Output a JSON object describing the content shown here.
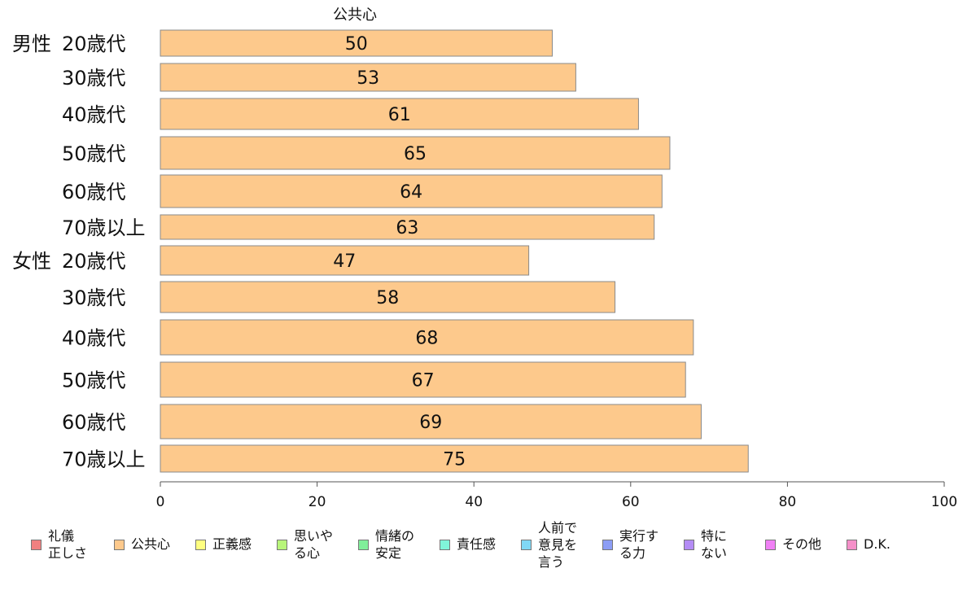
{
  "chart_data": {
    "type": "bar",
    "orientation": "horizontal",
    "title": "公共心",
    "groups": [
      "男性",
      "女性"
    ],
    "categories": [
      {
        "group": "男性",
        "label": "20歳代",
        "value": 50
      },
      {
        "group": "",
        "label": "30歳代",
        "value": 53
      },
      {
        "group": "",
        "label": "40歳代",
        "value": 61
      },
      {
        "group": "",
        "label": "50歳代",
        "value": 65
      },
      {
        "group": "",
        "label": "60歳代",
        "value": 64
      },
      {
        "group": "",
        "label": "70歳以上",
        "value": 63
      },
      {
        "group": "女性",
        "label": "20歳代",
        "value": 47
      },
      {
        "group": "",
        "label": "30歳代",
        "value": 58
      },
      {
        "group": "",
        "label": "40歳代",
        "value": 68
      },
      {
        "group": "",
        "label": "50歳代",
        "value": 67
      },
      {
        "group": "",
        "label": "60歳代",
        "value": 69
      },
      {
        "group": "",
        "label": "70歳以上",
        "value": 75
      }
    ],
    "xlim": [
      0,
      100
    ],
    "xticks": [
      0,
      20,
      40,
      60,
      80,
      100
    ],
    "bar_color": "#fdc98c",
    "grid": false,
    "legend_position": "bottom",
    "legend": [
      {
        "label": "礼儀\n正しさ",
        "color": "#f08080"
      },
      {
        "label": "公共心",
        "color": "#fdc98c"
      },
      {
        "label": "正義感",
        "color": "#ffff80"
      },
      {
        "label": "思いや\nる心",
        "color": "#b8f57a"
      },
      {
        "label": "情緒の\n安定",
        "color": "#80ef9a"
      },
      {
        "label": "責任感",
        "color": "#80f5d9"
      },
      {
        "label": "人前で\n意見を\n言う",
        "color": "#80d8f5"
      },
      {
        "label": "実行す\nる力",
        "color": "#8c9df5"
      },
      {
        "label": "特に\nない",
        "color": "#b48cf5"
      },
      {
        "label": "その他",
        "color": "#f080f5"
      },
      {
        "label": "D.K.",
        "color": "#f590c9"
      }
    ]
  }
}
